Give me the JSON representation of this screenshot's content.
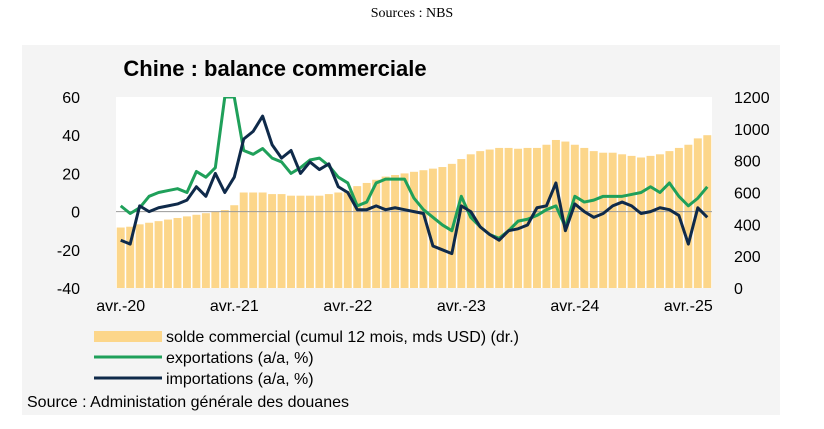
{
  "header": {
    "sources_caption": "Sources : NBS"
  },
  "chart_data": {
    "type": "bar+line",
    "title": "Chine : balance commerciale",
    "source": "Source : Administation générale des douanes",
    "x_tick_labels": [
      "avr.-20",
      "avr.-21",
      "avr.-22",
      "avr.-23",
      "avr.-24",
      "avr.-25"
    ],
    "y_left": {
      "min": -40,
      "max": 60,
      "ticks": [
        -40,
        -20,
        0,
        20,
        40,
        60
      ]
    },
    "y_right": {
      "min": 0,
      "max": 1200,
      "ticks": [
        0,
        200,
        400,
        600,
        800,
        1000,
        1200
      ]
    },
    "n_months": 63,
    "colors": {
      "bars": "#fcd68a",
      "exports": "#1fa05a",
      "imports": "#0f2a4a",
      "zero_line": "#9a9a9a"
    },
    "series": [
      {
        "name": "solde commercial (cumul 12 mois, mds USD) (dr.)",
        "kind": "bar",
        "axis": "right",
        "values": [
          380,
          385,
          400,
          410,
          420,
          430,
          440,
          450,
          460,
          470,
          480,
          490,
          520,
          600,
          600,
          600,
          590,
          590,
          580,
          580,
          580,
          580,
          590,
          600,
          610,
          640,
          660,
          680,
          700,
          710,
          720,
          730,
          740,
          750,
          760,
          780,
          810,
          840,
          860,
          870,
          880,
          880,
          875,
          880,
          880,
          900,
          930,
          920,
          900,
          880,
          860,
          850,
          850,
          840,
          830,
          820,
          830,
          840,
          860,
          880,
          900,
          940,
          960
        ]
      },
      {
        "name": "exportations (a/a, %)",
        "kind": "line",
        "axis": "left",
        "values": [
          3,
          -1,
          2,
          8,
          10,
          11,
          12,
          10,
          21,
          18,
          23,
          60,
          60,
          32,
          30,
          33,
          28,
          26,
          20,
          23,
          27,
          28,
          24,
          18,
          15,
          3,
          5,
          15,
          17,
          17,
          17,
          7,
          1,
          -3,
          -7,
          -10,
          8,
          -3,
          -8,
          -12,
          -14,
          -10,
          -5,
          -4,
          -2,
          1,
          3,
          -8,
          8,
          5,
          6,
          8,
          8,
          8,
          9,
          10,
          13,
          10,
          15,
          8,
          3,
          7,
          13
        ]
      },
      {
        "name": "importations (a/a, %)",
        "kind": "line",
        "axis": "left",
        "values": [
          -15,
          -17,
          3,
          0,
          2,
          3,
          4,
          6,
          13,
          8,
          20,
          10,
          18,
          38,
          42,
          50,
          35,
          28,
          32,
          20,
          26,
          22,
          25,
          13,
          10,
          1,
          1,
          3,
          1,
          2,
          1,
          0,
          -1,
          -18,
          -20,
          -22,
          3,
          0,
          -8,
          -12,
          -15,
          -10,
          -9,
          -7,
          2,
          3,
          15,
          -10,
          4,
          0,
          -3,
          -1,
          3,
          5,
          3,
          -1,
          0,
          2,
          1,
          -2,
          -17,
          2,
          -3
        ]
      }
    ],
    "x_tick_month_index": [
      0,
      12,
      24,
      36,
      48,
      60
    ],
    "legend": [
      {
        "label": "solde commercial (cumul 12 mois, mds USD) (dr.)",
        "kind": "bar"
      },
      {
        "label": "exportations (a/a, %)",
        "kind": "line",
        "series": "exports"
      },
      {
        "label": "importations (a/a, %)",
        "kind": "line",
        "series": "imports"
      }
    ]
  }
}
